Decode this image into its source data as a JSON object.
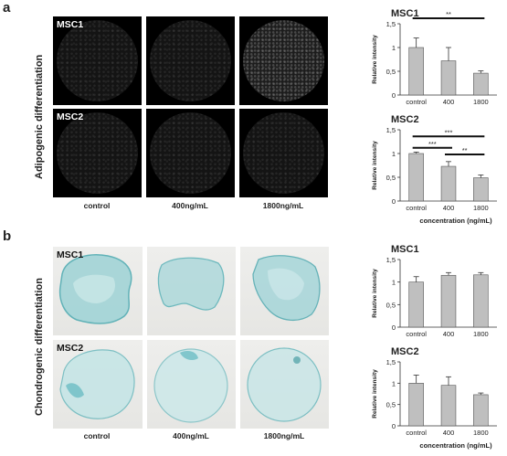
{
  "panels": [
    {
      "letter": "a",
      "side_label": "Adipogenic differentiation",
      "row_labels": [
        "MSC1",
        "MSC2"
      ],
      "image_captions": [
        "control",
        "400ng/mL",
        "1800ng/mL"
      ],
      "charts": [
        {
          "type": "bar",
          "title": "MSC1",
          "ylabel": "Relative intensity",
          "xlabel": "",
          "categories": [
            "control",
            "400",
            "1800"
          ],
          "values": [
            1.0,
            0.72,
            0.46
          ],
          "errors": [
            0.2,
            0.28,
            0.05
          ],
          "ylim": [
            0,
            1.5
          ],
          "yticks": [
            "0",
            "0,5",
            "1",
            "1,5"
          ],
          "significance": [
            {
              "from": 0,
              "to": 2,
              "label": "**"
            }
          ]
        },
        {
          "type": "bar",
          "title": "MSC2",
          "ylabel": "Relative intensity",
          "xlabel": "concentration  (ng/mL)",
          "categories": [
            "control",
            "400",
            "1800"
          ],
          "values": [
            1.0,
            0.73,
            0.49
          ],
          "errors": [
            0.03,
            0.1,
            0.06
          ],
          "ylim": [
            0,
            1.5
          ],
          "yticks": [
            "0",
            "0,5",
            "1",
            "1,5"
          ],
          "significance": [
            {
              "from": 0,
              "to": 2,
              "label": "***"
            },
            {
              "from": 0,
              "to": 1,
              "label": "***"
            },
            {
              "from": 1,
              "to": 2,
              "label": "**"
            }
          ]
        }
      ]
    },
    {
      "letter": "b",
      "side_label": "Chondrogenic differentiation",
      "row_labels": [
        "MSC1",
        "MSC2"
      ],
      "image_captions": [
        "control",
        "400ng/mL",
        "1800ng/mL"
      ],
      "charts": [
        {
          "type": "bar",
          "title": "MSC1",
          "ylabel": "Relative intensity",
          "xlabel": "",
          "categories": [
            "control",
            "400",
            "1800"
          ],
          "values": [
            1.0,
            1.15,
            1.16
          ],
          "errors": [
            0.12,
            0.06,
            0.05
          ],
          "ylim": [
            0,
            1.5
          ],
          "yticks": [
            "0",
            "0,5",
            "1",
            "1,5"
          ],
          "significance": []
        },
        {
          "type": "bar",
          "title": "MSC2",
          "ylabel": "Relative intensity",
          "xlabel": "concentration  (ng/mL)",
          "categories": [
            "control",
            "400",
            "1800"
          ],
          "values": [
            1.0,
            0.95,
            0.73
          ],
          "errors": [
            0.19,
            0.2,
            0.04
          ],
          "ylim": [
            0,
            1.5
          ],
          "yticks": [
            "0",
            "0,5",
            "1",
            "1,5"
          ],
          "significance": []
        }
      ]
    }
  ],
  "colors": {
    "bar_fill": "#bfbfbf",
    "stain": "#5fb8bf"
  },
  "chart_data": [
    {
      "type": "bar",
      "title": "MSC1",
      "ylabel": "Relative intensity",
      "categories": [
        "control",
        "400",
        "1800"
      ],
      "values": [
        1.0,
        0.72,
        0.46
      ],
      "ylim": [
        0,
        1.5
      ]
    },
    {
      "type": "bar",
      "title": "MSC2",
      "ylabel": "Relative intensity",
      "xlabel": "concentration  (ng/mL)",
      "categories": [
        "control",
        "400",
        "1800"
      ],
      "values": [
        1.0,
        0.73,
        0.49
      ],
      "ylim": [
        0,
        1.5
      ]
    },
    {
      "type": "bar",
      "title": "MSC1",
      "ylabel": "Relative intensity",
      "categories": [
        "control",
        "400",
        "1800"
      ],
      "values": [
        1.0,
        1.15,
        1.16
      ],
      "ylim": [
        0,
        1.5
      ]
    },
    {
      "type": "bar",
      "title": "MSC2",
      "ylabel": "Relative intensity",
      "xlabel": "concentration  (ng/mL)",
      "categories": [
        "control",
        "400",
        "1800"
      ],
      "values": [
        1.0,
        0.95,
        0.73
      ],
      "ylim": [
        0,
        1.5
      ]
    }
  ]
}
